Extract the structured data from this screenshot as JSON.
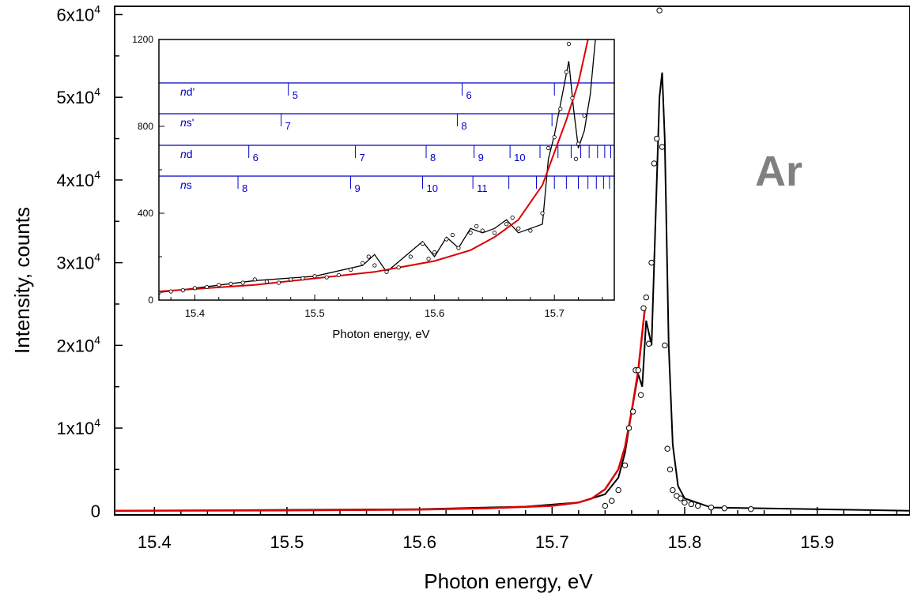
{
  "chart_data": [
    {
      "type": "scatter",
      "panel": "main",
      "xlabel": "Photon energy, eV",
      "ylabel": "Intensity, counts",
      "xlim": [
        15.37,
        15.97
      ],
      "ylim": [
        -500,
        61000
      ],
      "xticks": [
        15.4,
        15.5,
        15.6,
        15.7,
        15.8,
        15.9
      ],
      "xtick_labels": [
        "15.4",
        "15.5",
        "15.6",
        "15.7",
        "15.8",
        "15.9"
      ],
      "yticks": [
        0,
        10000,
        20000,
        30000,
        40000,
        50000,
        60000
      ],
      "ytick_labels": [
        {
          "mantissa": "0",
          "exp": ""
        },
        {
          "mantissa": "1x10",
          "exp": "4"
        },
        {
          "mantissa": "2x10",
          "exp": "4"
        },
        {
          "mantissa": "3x10",
          "exp": "4"
        },
        {
          "mantissa": "4x10",
          "exp": "4"
        },
        {
          "mantissa": "5x10",
          "exp": "4"
        },
        {
          "mantissa": "6x10",
          "exp": "4"
        }
      ],
      "annotation": "Ar",
      "series": [
        {
          "style": "markers",
          "color": "#000000",
          "x": [
            15.74,
            15.745,
            15.75,
            15.755,
            15.758,
            15.761,
            15.763,
            15.765,
            15.767,
            15.769,
            15.771,
            15.773,
            15.775,
            15.777,
            15.779,
            15.781,
            15.783,
            15.785,
            15.787,
            15.789,
            15.791,
            15.794,
            15.797,
            15.8,
            15.805,
            15.81,
            15.82,
            15.83,
            15.85
          ],
          "y": [
            600,
            1200,
            2500,
            5500,
            10000,
            12000,
            17000,
            17000,
            14000,
            24500,
            25800,
            20200,
            30000,
            42000,
            45000,
            60500,
            44000,
            20000,
            7500,
            5000,
            2500,
            1800,
            1500,
            1000,
            800,
            600,
            400,
            300,
            200
          ]
        },
        {
          "style": "line",
          "color": "#000000",
          "x": [
            15.37,
            15.6,
            15.68,
            15.72,
            15.74,
            15.75,
            15.755,
            15.76,
            15.765,
            15.768,
            15.771,
            15.775,
            15.778,
            15.781,
            15.783,
            15.785,
            15.788,
            15.791,
            15.795,
            15.8,
            15.82,
            15.97
          ],
          "y": [
            0,
            200,
            500,
            1000,
            2000,
            4000,
            7000,
            12000,
            16500,
            15000,
            23000,
            20000,
            35000,
            50000,
            53000,
            45000,
            20000,
            8000,
            3000,
            1500,
            400,
            0
          ]
        },
        {
          "style": "line",
          "color": "#dd0000",
          "x": [
            15.37,
            15.5,
            15.6,
            15.65,
            15.7,
            15.72,
            15.73,
            15.74,
            15.75,
            15.755,
            15.76,
            15.765,
            15.77
          ],
          "y": [
            0,
            50,
            150,
            300,
            600,
            1000,
            1500,
            2600,
            5000,
            7700,
            12000,
            17000,
            24500
          ]
        }
      ]
    },
    {
      "type": "scatter",
      "panel": "inset",
      "xlabel": "Photon energy, eV",
      "xlim": [
        15.37,
        15.75
      ],
      "ylim": [
        0,
        1200
      ],
      "xticks": [
        15.4,
        15.5,
        15.6,
        15.7
      ],
      "xtick_labels": [
        "15.4",
        "15.5",
        "15.6",
        "15.7"
      ],
      "yticks": [
        0,
        400,
        800,
        1200
      ],
      "ytick_labels": [
        "0",
        "400",
        "800",
        "1200"
      ],
      "series": [
        {
          "style": "markers",
          "color": "#000000",
          "x": [
            15.37,
            15.38,
            15.39,
            15.4,
            15.41,
            15.42,
            15.43,
            15.44,
            15.45,
            15.46,
            15.47,
            15.48,
            15.49,
            15.5,
            15.51,
            15.52,
            15.53,
            15.54,
            15.545,
            15.55,
            15.56,
            15.57,
            15.58,
            15.59,
            15.595,
            15.6,
            15.61,
            15.615,
            15.62,
            15.63,
            15.635,
            15.64,
            15.65,
            15.66,
            15.665,
            15.67,
            15.68,
            15.69,
            15.695,
            15.7,
            15.705,
            15.71,
            15.712,
            15.715,
            15.718,
            15.72,
            15.725
          ],
          "y": [
            35,
            40,
            45,
            55,
            60,
            70,
            75,
            80,
            95,
            85,
            80,
            95,
            100,
            110,
            105,
            115,
            140,
            170,
            200,
            160,
            130,
            150,
            200,
            260,
            190,
            220,
            280,
            300,
            240,
            310,
            340,
            320,
            310,
            350,
            380,
            330,
            320,
            400,
            700,
            750,
            880,
            1050,
            1180,
            930,
            650,
            720,
            850
          ]
        },
        {
          "style": "line",
          "color": "#000000",
          "x": [
            15.37,
            15.4,
            15.45,
            15.5,
            15.54,
            15.55,
            15.56,
            15.59,
            15.6,
            15.61,
            15.62,
            15.63,
            15.64,
            15.65,
            15.66,
            15.67,
            15.69,
            15.695,
            15.7,
            15.705,
            15.712,
            15.716,
            15.72,
            15.725,
            15.73,
            15.735
          ],
          "y": [
            35,
            55,
            90,
            110,
            160,
            210,
            130,
            270,
            200,
            290,
            240,
            330,
            310,
            330,
            370,
            310,
            350,
            650,
            760,
            900,
            1100,
            880,
            700,
            780,
            950,
            1250
          ]
        },
        {
          "style": "line",
          "color": "#dd0000",
          "x": [
            15.37,
            15.45,
            15.5,
            15.55,
            15.6,
            15.63,
            15.65,
            15.67,
            15.69,
            15.7,
            15.71,
            15.72,
            15.73
          ],
          "y": [
            40,
            70,
            100,
            130,
            180,
            230,
            290,
            370,
            530,
            680,
            830,
            1000,
            1250
          ]
        }
      ],
      "rydberg_series": [
        {
          "label_italic": "n",
          "label_rest": "d'",
          "ticks": [
            {
              "x": 15.478,
              "n": "5"
            },
            {
              "x": 15.623,
              "n": "6"
            },
            {
              "x": 15.7,
              "n": ""
            }
          ]
        },
        {
          "label_italic": "n",
          "label_rest": "s'",
          "ticks": [
            {
              "x": 15.472,
              "n": "7"
            },
            {
              "x": 15.619,
              "n": "8"
            },
            {
              "x": 15.698,
              "n": ""
            }
          ]
        },
        {
          "label_italic": "n",
          "label_rest": "d",
          "ticks": [
            {
              "x": 15.445,
              "n": "6"
            },
            {
              "x": 15.534,
              "n": "7"
            },
            {
              "x": 15.593,
              "n": "8"
            },
            {
              "x": 15.633,
              "n": "9"
            },
            {
              "x": 15.663,
              "n": "10"
            },
            {
              "x": 15.688,
              "n": ""
            },
            {
              "x": 15.703,
              "n": ""
            },
            {
              "x": 15.714,
              "n": ""
            },
            {
              "x": 15.722,
              "n": ""
            },
            {
              "x": 15.729,
              "n": ""
            },
            {
              "x": 15.736,
              "n": ""
            },
            {
              "x": 15.742,
              "n": ""
            },
            {
              "x": 15.747,
              "n": ""
            }
          ]
        },
        {
          "label_italic": "n",
          "label_rest": "s",
          "ticks": [
            {
              "x": 15.436,
              "n": "8"
            },
            {
              "x": 15.53,
              "n": "9"
            },
            {
              "x": 15.59,
              "n": "10"
            },
            {
              "x": 15.632,
              "n": "11"
            },
            {
              "x": 15.662,
              "n": ""
            },
            {
              "x": 15.685,
              "n": ""
            },
            {
              "x": 15.7,
              "n": ""
            },
            {
              "x": 15.71,
              "n": ""
            },
            {
              "x": 15.72,
              "n": ""
            },
            {
              "x": 15.728,
              "n": ""
            },
            {
              "x": 15.735,
              "n": ""
            },
            {
              "x": 15.741,
              "n": ""
            },
            {
              "x": 15.746,
              "n": ""
            }
          ]
        }
      ]
    }
  ],
  "colors": {
    "axes": "#000000",
    "data": "#000000",
    "fit": "#dd0000",
    "rydberg": "#0000cc",
    "annotation": "#808080"
  }
}
